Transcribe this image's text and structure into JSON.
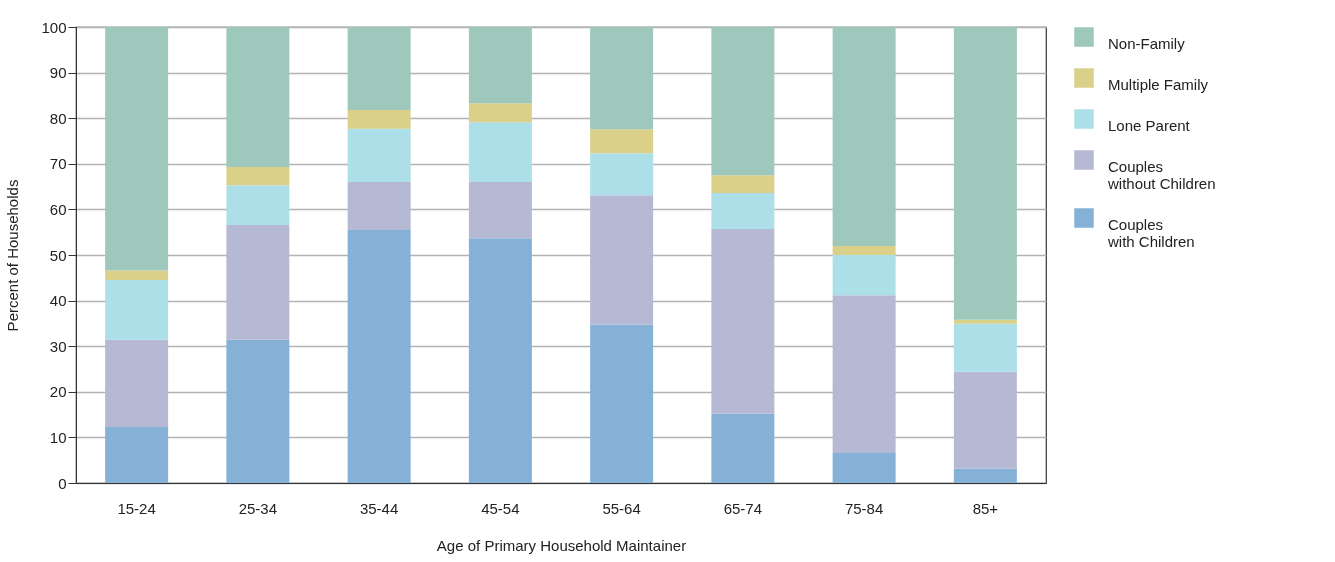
{
  "chart_data": {
    "type": "bar",
    "stacked": true,
    "categories": [
      "15-24",
      "25-34",
      "35-44",
      "45-54",
      "55-64",
      "65-74",
      "75-84",
      "85+"
    ],
    "series": [
      {
        "name": "Couples\nwith Children",
        "color": "#86b1d7",
        "values": [
          12.3,
          31.4,
          55.5,
          53.7,
          34.7,
          15.2,
          6.6,
          3.1
        ]
      },
      {
        "name": "Couples\nwithout Children",
        "color": "#b5b9d4",
        "values": [
          19.1,
          25.2,
          10.5,
          12.3,
          28.4,
          40.5,
          34.6,
          21.3
        ]
      },
      {
        "name": "Lone Parent",
        "color": "#addfe8",
        "values": [
          13.1,
          8.7,
          11.7,
          13.1,
          9.2,
          7.9,
          8.8,
          10.5
        ]
      },
      {
        "name": "Multiple Family",
        "color": "#dad08a",
        "values": [
          2.1,
          4.0,
          4.1,
          4.2,
          5.3,
          3.9,
          2.0,
          0.9
        ]
      },
      {
        "name": "Non-Family",
        "color": "#9dc8bb",
        "values": [
          53.4,
          30.7,
          18.2,
          16.7,
          22.4,
          32.5,
          48.0,
          64.2
        ]
      }
    ],
    "xlabel": "Age of Primary Household Maintainer",
    "ylabel": "Percent of Households",
    "ylim": [
      0,
      100
    ],
    "yticks": [
      0,
      10,
      20,
      30,
      40,
      50,
      60,
      70,
      80,
      90,
      100
    ],
    "grid": "y",
    "legend": "right"
  }
}
